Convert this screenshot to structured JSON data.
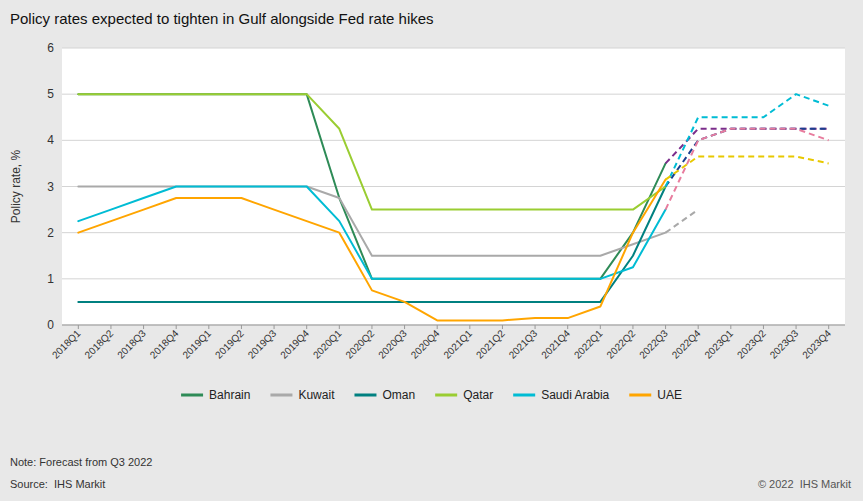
{
  "chart_data": {
    "type": "line",
    "title": "Policy rates expected to tighten in Gulf alongside Fed rate hikes",
    "y_label": "Policy rate, %",
    "annotations": [
      "Note: Forecast from Q3 2022",
      "Source:  IHS Markit",
      "© 2022  IHS Markit"
    ],
    "categories": [
      "2018Q1",
      "2018Q2",
      "2018Q3",
      "2018Q4",
      "2019Q1",
      "2019Q2",
      "2019Q3",
      "2019Q4",
      "2020Q1",
      "2020Q2",
      "2020Q3",
      "2020Q4",
      "2021Q1",
      "2021Q2",
      "2021Q3",
      "2021Q4",
      "2022Q1",
      "2022Q2",
      "2022Q3",
      "2022Q4",
      "2023Q1",
      "2023Q2",
      "2023Q3",
      "2023Q4"
    ],
    "ylim": [
      0,
      6
    ],
    "yticks": [
      0,
      1,
      2,
      3,
      4,
      5,
      6
    ],
    "grid": true,
    "legend": "bottom",
    "series": [
      {
        "name": "Bahrain",
        "color": "#2e8b57",
        "line_style": "solid",
        "values": [
          5.0,
          5.0,
          5.0,
          5.0,
          5.0,
          5.0,
          5.0,
          5.0,
          2.75,
          1.0,
          1.0,
          1.0,
          1.0,
          1.0,
          1.0,
          1.0,
          1.0,
          2.0,
          3.5,
          null,
          null,
          null,
          null,
          null
        ]
      },
      {
        "name": "Kuwait",
        "color": "#a9a9a9",
        "line_style": "solid",
        "values": [
          3.0,
          3.0,
          3.0,
          3.0,
          3.0,
          3.0,
          3.0,
          3.0,
          2.75,
          1.5,
          1.5,
          1.5,
          1.5,
          1.5,
          1.5,
          1.5,
          1.5,
          1.75,
          2.0,
          null,
          null,
          null,
          null,
          null
        ]
      },
      {
        "name": "Oman",
        "color": "#008080",
        "line_style": "solid",
        "values": [
          0.5,
          0.5,
          0.5,
          0.5,
          0.5,
          0.5,
          0.5,
          0.5,
          0.5,
          0.5,
          0.5,
          0.5,
          0.5,
          0.5,
          0.5,
          0.5,
          0.5,
          1.5,
          3.0,
          null,
          null,
          null,
          null,
          null
        ]
      },
      {
        "name": "Qatar",
        "color": "#9acd32",
        "line_style": "solid",
        "values": [
          5.0,
          5.0,
          5.0,
          5.0,
          5.0,
          5.0,
          5.0,
          5.0,
          4.25,
          2.5,
          2.5,
          2.5,
          2.5,
          2.5,
          2.5,
          2.5,
          2.5,
          2.5,
          3.0,
          null,
          null,
          null,
          null,
          null
        ]
      },
      {
        "name": "Saudi Arabia",
        "color": "#00bcd4",
        "line_style": "solid",
        "values": [
          2.25,
          2.5,
          2.75,
          3.0,
          3.0,
          3.0,
          3.0,
          3.0,
          2.25,
          1.0,
          1.0,
          1.0,
          1.0,
          1.0,
          1.0,
          1.0,
          1.0,
          1.25,
          2.5,
          null,
          null,
          null,
          null,
          null
        ]
      },
      {
        "name": "UAE",
        "color": "#ffa500",
        "line_style": "solid",
        "values": [
          2.0,
          2.25,
          2.5,
          2.75,
          2.75,
          2.75,
          2.5,
          2.25,
          2.0,
          0.75,
          0.5,
          0.1,
          0.1,
          0.1,
          0.15,
          0.15,
          0.4,
          2.0,
          3.15,
          null,
          null,
          null,
          null,
          null
        ]
      },
      {
        "name": "Bahrain",
        "color": "#7B2D8B",
        "line_style": "dashed",
        "values": [
          null,
          null,
          null,
          null,
          null,
          null,
          null,
          null,
          null,
          null,
          null,
          null,
          null,
          null,
          null,
          null,
          null,
          null,
          3.5,
          4.25,
          4.25,
          4.25,
          4.25,
          4.25
        ]
      },
      {
        "name": "Kuwait",
        "color": "#a9a9a9",
        "line_style": "dashed",
        "values": [
          null,
          null,
          null,
          null,
          null,
          null,
          null,
          null,
          null,
          null,
          null,
          null,
          null,
          null,
          null,
          null,
          null,
          null,
          2.0,
          2.5,
          null,
          null,
          null,
          null
        ]
      },
      {
        "name": "Oman",
        "color": "#1a3f8f",
        "line_style": "dashed",
        "values": [
          null,
          null,
          null,
          null,
          null,
          null,
          null,
          null,
          null,
          null,
          null,
          null,
          null,
          null,
          null,
          null,
          null,
          null,
          3.0,
          4.0,
          4.25,
          4.25,
          4.25,
          4.25
        ]
      },
      {
        "name": "Qatar",
        "color": "#00bcd4",
        "line_style": "dashed",
        "values": [
          null,
          null,
          null,
          null,
          null,
          null,
          null,
          null,
          null,
          null,
          null,
          null,
          null,
          null,
          null,
          null,
          null,
          null,
          3.0,
          4.5,
          4.5,
          4.5,
          5.0,
          4.75
        ]
      },
      {
        "name": "Saudi Arabia",
        "color": "#e87c9e",
        "line_style": "dashed",
        "values": [
          null,
          null,
          null,
          null,
          null,
          null,
          null,
          null,
          null,
          null,
          null,
          null,
          null,
          null,
          null,
          null,
          null,
          null,
          2.5,
          4.0,
          4.25,
          4.25,
          4.25,
          4.0
        ]
      },
      {
        "name": "UAE",
        "color": "#e8c800",
        "line_style": "dashed",
        "values": [
          null,
          null,
          null,
          null,
          null,
          null,
          null,
          null,
          null,
          null,
          null,
          null,
          null,
          null,
          null,
          null,
          null,
          null,
          3.15,
          3.65,
          3.65,
          3.65,
          3.65,
          3.5
        ]
      }
    ]
  }
}
